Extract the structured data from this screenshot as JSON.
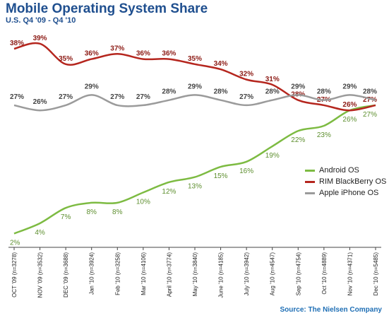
{
  "title": "Mobile Operating System Share",
  "subtitle": "U.S. Q4 '09 - Q4 '10",
  "source": "Source: The Nielsen Company",
  "colors": {
    "android": "#7dbb42",
    "rim": "#b5261e",
    "apple": "#9b9b9b",
    "title": "#1f4f8f",
    "source": "#1f6fb5"
  },
  "chart_data": {
    "type": "line",
    "title": "Mobile Operating System Share",
    "subtitle": "U.S. Q4 '09 - Q4 '10",
    "xlabel": "",
    "ylabel": "",
    "ylim": [
      0,
      42
    ],
    "grid": false,
    "legend_position": "right",
    "categories": [
      "OCT '09 (n=3278)",
      "NOV '09 (n=3532)",
      "DEC '09 (n=3688)",
      "Jan '10 (n=3924)",
      "Feb '10 (n=3258)",
      "Mar '10 (n=4106)",
      "April '10 (n=3774)",
      "May '10 (n=3840)",
      "June '10 (n=4185)",
      "July '10 (n=3942)",
      "Aug '10 (n=4547)",
      "Sep '10 (n=4754)",
      "Oct '10 (n=4889)",
      "Nov '10 (n=4371)",
      "Dec '10 (n=5485)"
    ],
    "series": [
      {
        "name": "Android OS",
        "key": "android",
        "values": [
          2,
          4,
          7,
          8,
          8,
          10,
          12,
          13,
          15,
          16,
          19,
          22,
          23,
          26,
          27
        ],
        "labels": [
          "2%",
          "4%",
          "7%",
          "8%",
          "8%",
          "10%",
          "12%",
          "13%",
          "15%",
          "16%",
          "19%",
          "22%",
          "23%",
          "26%",
          "27%"
        ]
      },
      {
        "name": "RIM BlackBerry OS",
        "key": "rim",
        "values": [
          38,
          39,
          35,
          36,
          37,
          36,
          36,
          35,
          34,
          32,
          31,
          28,
          27,
          26,
          27
        ],
        "labels": [
          "38%",
          "39%",
          "35%",
          "36%",
          "37%",
          "36%",
          "36%",
          "35%",
          "34%",
          "32%",
          "31%",
          "28%",
          "27%",
          "26%",
          "27%"
        ]
      },
      {
        "name": "Apple iPhone OS",
        "key": "apple",
        "values": [
          27,
          26,
          27,
          29,
          27,
          27,
          28,
          29,
          28,
          27,
          28,
          29,
          28,
          29,
          28
        ],
        "labels": [
          "27%",
          "26%",
          "27%",
          "29%",
          "27%",
          "27%",
          "28%",
          "29%",
          "28%",
          "27%",
          "28%",
          "29%",
          "28%",
          "29%",
          "28%"
        ]
      }
    ]
  }
}
